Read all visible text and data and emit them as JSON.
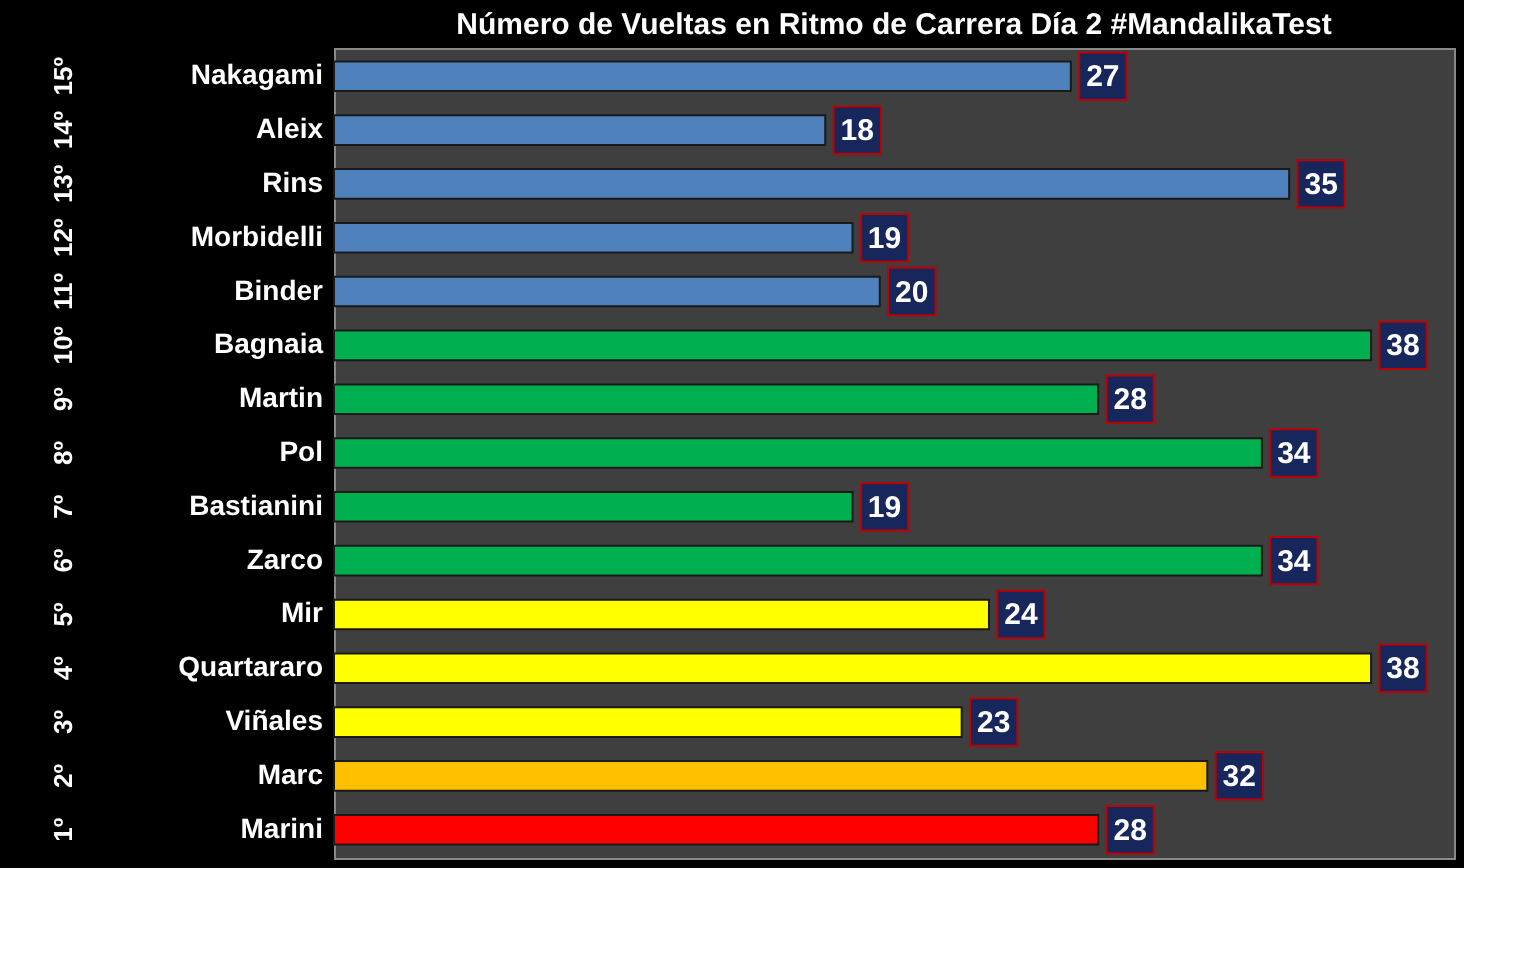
{
  "chart_data": {
    "type": "bar",
    "orientation": "horizontal",
    "title": "Número de Vueltas en Ritmo de Carrera Día 2 #MandalikaTest",
    "categories": [
      "Nakagami",
      "Aleix",
      "Rins",
      "Morbidelli",
      "Binder",
      "Bagnaia",
      "Martin",
      "Pol",
      "Bastianini",
      "Zarco",
      "Mir",
      "Quartararo",
      "Viñales",
      "Marc",
      "Marini"
    ],
    "values": [
      27,
      18,
      35,
      19,
      20,
      38,
      28,
      34,
      19,
      34,
      24,
      38,
      23,
      32,
      28
    ],
    "colors": [
      "#4f81bd",
      "#4f81bd",
      "#4f81bd",
      "#4f81bd",
      "#4f81bd",
      "#00b050",
      "#00b050",
      "#00b050",
      "#00b050",
      "#00b050",
      "#ffff00",
      "#ffff00",
      "#ffff00",
      "#ffc000",
      "#ff0000"
    ],
    "data_labels": true,
    "grid": false,
    "tick_labels": "y",
    "annotations": [
      "15º",
      "14º",
      "13º",
      "12º",
      "11º",
      "10º",
      "9º",
      "8º",
      "7º",
      "6º",
      "5º",
      "4º",
      "3º",
      "2º",
      "1º"
    ]
  }
}
